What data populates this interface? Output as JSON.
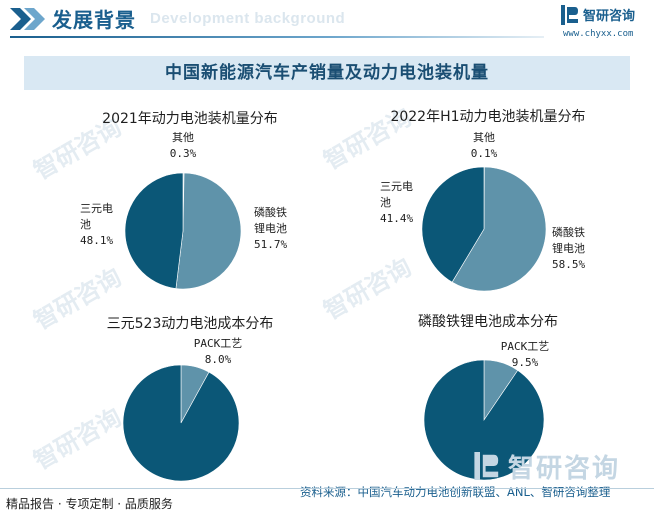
{
  "header": {
    "title": "发展背景",
    "watermark_text": "Development background",
    "logo_name": "智研咨询",
    "logo_url": "www.chyxx.com"
  },
  "banner": {
    "title": "中国新能源汽车产销量及动力电池装机量"
  },
  "watermark": {
    "text": "智研咨询",
    "subtext": "www.chyxx.com"
  },
  "colors": {
    "dark_blue": "#0b5777",
    "light_blue": "#5f93aa",
    "accent": "#1a5f8e"
  },
  "chart_data": [
    {
      "type": "pie",
      "title": "2021年动力电池装机量分布",
      "slices": [
        {
          "label": [
            "其他"
          ],
          "value": 0.3,
          "value_text": "0.3%",
          "color": "#9ab8c8"
        },
        {
          "label": [
            "磷酸铁",
            "锂电池"
          ],
          "value": 51.7,
          "value_text": "51.7%",
          "color": "#5f93aa"
        },
        {
          "label": [
            "三元电",
            "池"
          ],
          "value": 48.1,
          "value_text": "48.1%",
          "color": "#0b5777"
        }
      ]
    },
    {
      "type": "pie",
      "title": "2022年H1动力电池装机量分布",
      "slices": [
        {
          "label": [
            "其他"
          ],
          "value": 0.1,
          "value_text": "0.1%",
          "color": "#9ab8c8"
        },
        {
          "label": [
            "磷酸铁",
            "锂电池"
          ],
          "value": 58.5,
          "value_text": "58.5%",
          "color": "#5f93aa"
        },
        {
          "label": [
            "三元电",
            "池"
          ],
          "value": 41.4,
          "value_text": "41.4%",
          "color": "#0b5777"
        }
      ]
    },
    {
      "type": "pie",
      "title": "三元523动力电池成本分布",
      "slices": [
        {
          "label": [
            "PACK工艺"
          ],
          "value": 8.0,
          "value_text": "8.0%",
          "color": "#5f93aa"
        },
        {
          "label": [],
          "value": 92.0,
          "value_text": "",
          "color": "#0b5777"
        }
      ]
    },
    {
      "type": "pie",
      "title": "磷酸铁锂电池成本分布",
      "slices": [
        {
          "label": [
            "PACK工艺"
          ],
          "value": 9.5,
          "value_text": "9.5%",
          "color": "#5f93aa"
        },
        {
          "label": [],
          "value": 90.5,
          "value_text": "",
          "color": "#0b5777"
        }
      ]
    }
  ],
  "footer": {
    "left_text": "精品报告 · 专项定制 · 品质服务",
    "source_text": "资料来源：中国汽车动力电池创新联盟、ANL、智研咨询整理",
    "logo_text": "智研咨询"
  }
}
